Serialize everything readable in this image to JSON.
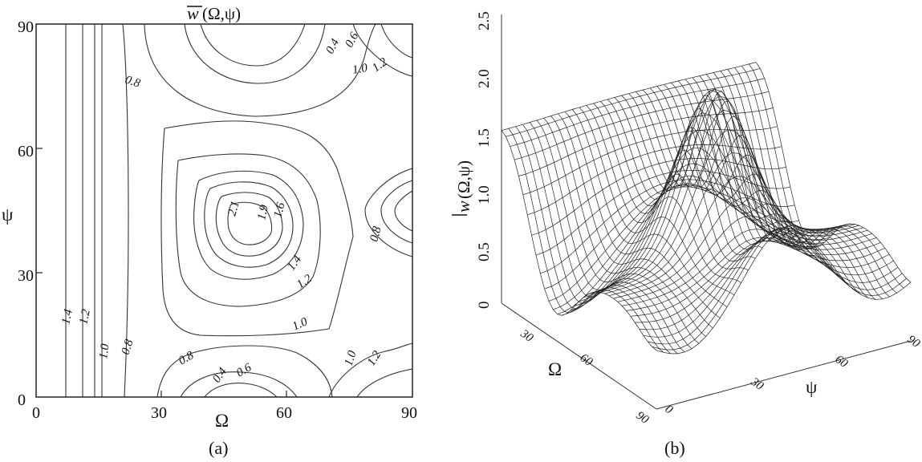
{
  "chart_data": [
    {
      "panel": "a",
      "type": "contour",
      "caption": "(a)",
      "title_symbol": "w",
      "title_args": "(Ω,ψ)",
      "xlabel": "Ω",
      "ylabel": "ψ",
      "xlim": [
        0,
        90
      ],
      "ylim": [
        0,
        90
      ],
      "xticks": [
        "0",
        "30",
        "60",
        "90"
      ],
      "yticks": [
        "0",
        "30",
        "60",
        "90"
      ],
      "contour_labels": [
        "0.4",
        "0.6",
        "0.8",
        "1.0",
        "1.2",
        "0.8",
        "2.1",
        "1.9",
        "1.6",
        "1.4",
        "1.2",
        "1.0",
        "0.8",
        "1.4",
        "1.2",
        "1.0",
        "0.8",
        "0.4",
        "0.6",
        "1.0",
        "1.2"
      ],
      "levels": [
        0.4,
        0.6,
        0.8,
        1.0,
        1.2,
        1.4,
        1.6,
        1.9,
        2.1
      ]
    },
    {
      "panel": "b",
      "type": "surface",
      "caption": "(b)",
      "zlabel_symbol": "w",
      "zlabel_args": "(Ω,ψ)",
      "xlabel": "Ω",
      "ylabel": "ψ",
      "zlim": [
        0,
        2.5
      ],
      "zticks": [
        "0",
        "0.5",
        "1.0",
        "1.5",
        "2.0",
        "2.5"
      ],
      "omega_ticks": [
        "30",
        "60",
        "90"
      ],
      "psi_ticks": [
        "0",
        "30",
        "60",
        "90"
      ]
    }
  ]
}
